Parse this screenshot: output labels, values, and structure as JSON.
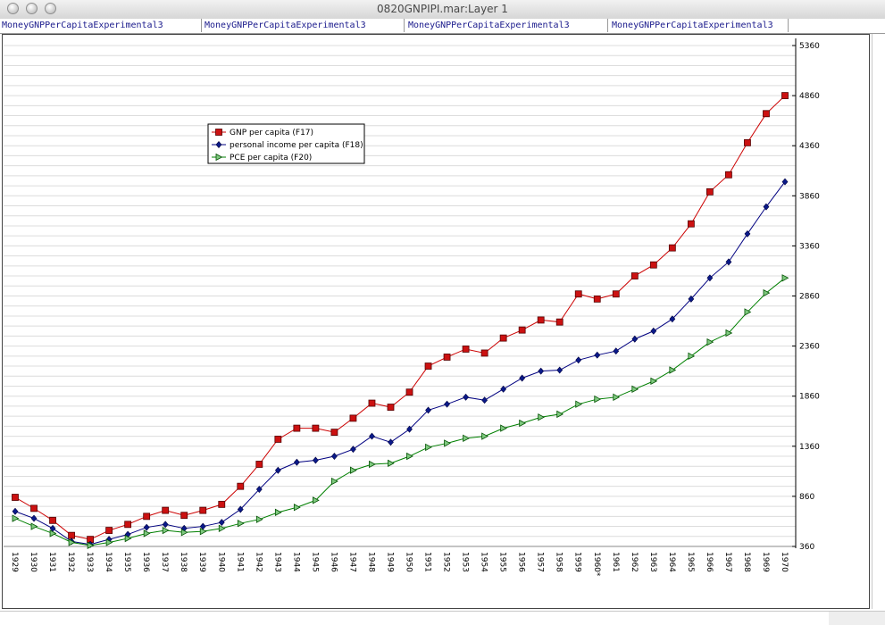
{
  "window": {
    "title": "0820GNPIPI.mar:Layer 1"
  },
  "tabs": [
    {
      "label": "MoneyGNPPerCapitaExperimental3"
    },
    {
      "label": "MoneyGNPPerCapitaExperimental3"
    },
    {
      "label": "MoneyGNPPerCapitaExperimental3"
    },
    {
      "label": "MoneyGNPPerCapitaExperimental3"
    }
  ],
  "chart_data": {
    "type": "line",
    "title": "",
    "xlabel": "",
    "ylabel": "",
    "ylim": [
      360,
      5360
    ],
    "y_ticks": [
      360,
      860,
      1360,
      1860,
      2360,
      2860,
      3360,
      3860,
      4360,
      4860,
      5360
    ],
    "y_axis_side": "right",
    "grid": true,
    "legend_position": "upper-left",
    "x": [
      "1929",
      "1930",
      "1931",
      "1932",
      "1933",
      "1934",
      "1935",
      "1936",
      "1937",
      "1938",
      "1939",
      "1940",
      "1941",
      "1942",
      "1943",
      "1944",
      "1945",
      "1946",
      "1947",
      "1948",
      "1949",
      "1950",
      "1951",
      "1952",
      "1953",
      "1954",
      "1955",
      "1956",
      "1957",
      "1958",
      "1959",
      "1960*",
      "1961",
      "1962",
      "1963",
      "1964",
      "1965",
      "1966",
      "1967",
      "1968",
      "1969",
      "1970"
    ],
    "series": [
      {
        "name": "GNP  per capita (F17)",
        "color": "#cc0000",
        "fill": "#cc1111",
        "marker": "square",
        "values": [
          850,
          740,
          620,
          470,
          430,
          520,
          580,
          660,
          720,
          670,
          720,
          780,
          960,
          1180,
          1430,
          1540,
          1540,
          1500,
          1640,
          1790,
          1750,
          1900,
          2160,
          2250,
          2330,
          2290,
          2440,
          2520,
          2620,
          2600,
          2880,
          2830,
          2880,
          3060,
          3170,
          3340,
          3580,
          3900,
          4070,
          4390,
          4680,
          4860
        ]
      },
      {
        "name": "personal income per capita (F18)",
        "color": "#000080",
        "fill": "#0a1a8a",
        "marker": "diamond",
        "values": [
          710,
          640,
          540,
          410,
          380,
          430,
          480,
          550,
          580,
          540,
          560,
          600,
          730,
          930,
          1120,
          1200,
          1220,
          1260,
          1330,
          1460,
          1400,
          1530,
          1720,
          1780,
          1850,
          1820,
          1930,
          2040,
          2110,
          2120,
          2220,
          2270,
          2310,
          2430,
          2510,
          2630,
          2830,
          3040,
          3200,
          3480,
          3750,
          4000
        ]
      },
      {
        "name": "PCE per capita (F20)",
        "color": "#008000",
        "fill": "#7fc97f",
        "marker": "triangle-right",
        "values": [
          640,
          560,
          490,
          400,
          370,
          400,
          440,
          490,
          520,
          500,
          510,
          540,
          590,
          630,
          700,
          750,
          820,
          1010,
          1120,
          1180,
          1190,
          1260,
          1350,
          1390,
          1440,
          1460,
          1540,
          1590,
          1650,
          1680,
          1780,
          1830,
          1850,
          1930,
          2010,
          2120,
          2260,
          2400,
          2490,
          2700,
          2890,
          3040
        ]
      }
    ]
  }
}
